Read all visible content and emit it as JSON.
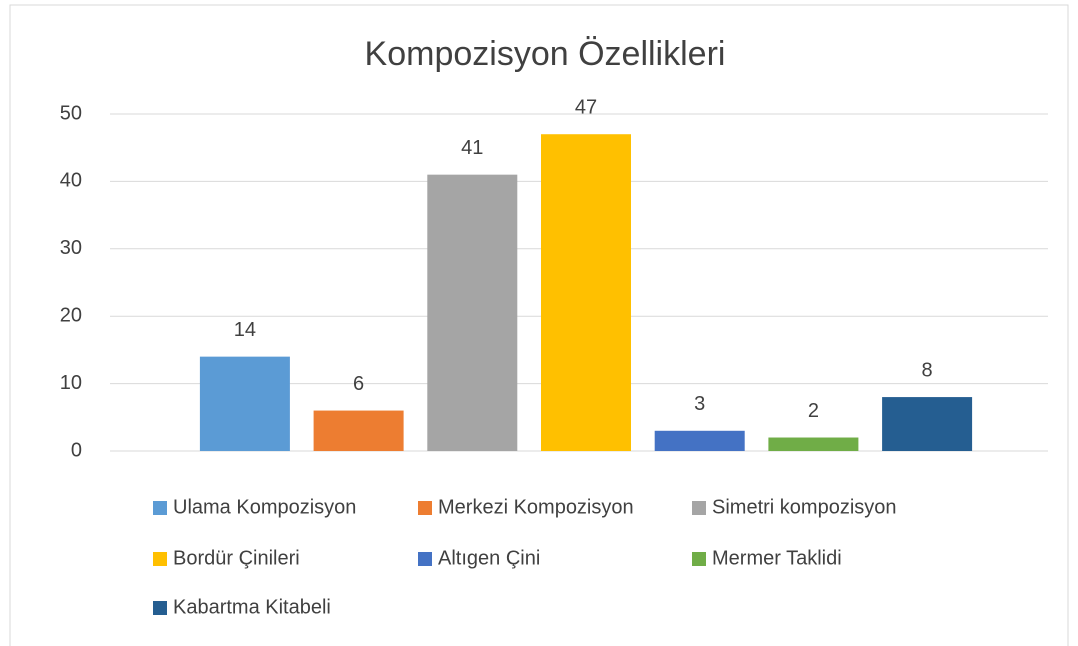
{
  "chart_data": {
    "type": "bar",
    "title": "Kompozisyon Özellikleri",
    "series": [
      {
        "name": "Ulama Kompozisyon",
        "color": "#5b9bd5",
        "values": [
          14
        ]
      },
      {
        "name": "Merkezi Kompozisyon",
        "color": "#ed7d31",
        "values": [
          6
        ]
      },
      {
        "name": "Simetri kompozisyon",
        "color": "#a5a5a5",
        "values": [
          41
        ]
      },
      {
        "name": "Bordür Çinileri",
        "color": "#ffc000",
        "values": [
          47
        ]
      },
      {
        "name": "Altıgen Çini",
        "color": "#4472c4",
        "values": [
          3
        ]
      },
      {
        "name": "Mermer Taklidi",
        "color": "#70ad47",
        "values": [
          2
        ]
      },
      {
        "name": "Kabartma Kitabeli",
        "color": "#255e91",
        "values": [
          8
        ]
      }
    ],
    "ylim": [
      0,
      50
    ],
    "yticks": [
      0,
      10,
      20,
      30,
      40,
      50
    ],
    "grid": true,
    "legend": "bottom",
    "data_labels": true
  }
}
